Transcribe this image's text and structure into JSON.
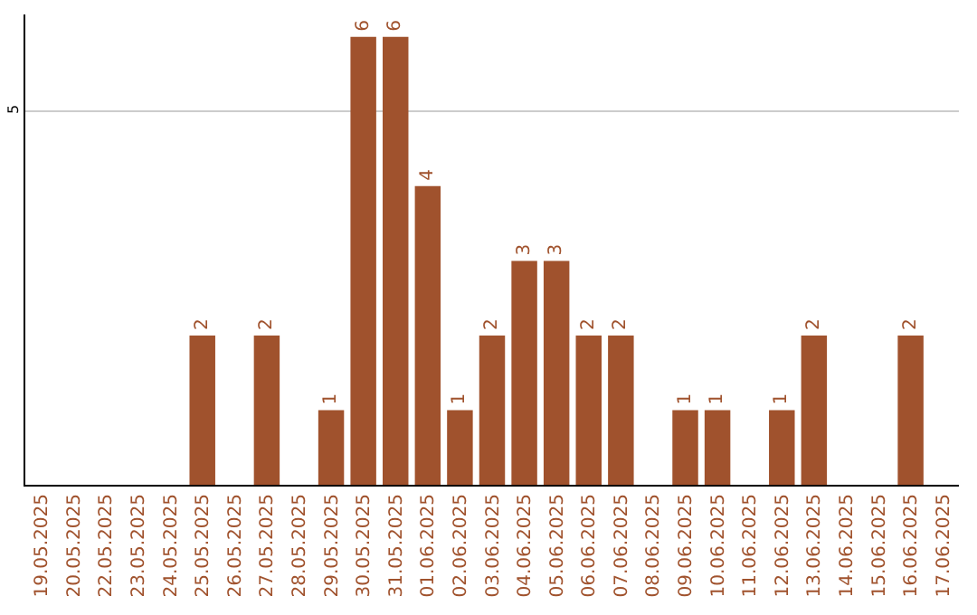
{
  "chart_data": {
    "type": "bar",
    "categories": [
      "19.05.2025",
      "20.05.2025",
      "22.05.2025",
      "23.05.2025",
      "24.05.2025",
      "25.05.2025",
      "26.05.2025",
      "27.05.2025",
      "28.05.2025",
      "29.05.2025",
      "30.05.2025",
      "31.05.2025",
      "01.06.2025",
      "02.06.2025",
      "03.06.2025",
      "04.06.2025",
      "05.06.2025",
      "06.06.2025",
      "07.06.2025",
      "08.06.2025",
      "09.06.2025",
      "10.06.2025",
      "11.06.2025",
      "12.06.2025",
      "13.06.2025",
      "14.06.2025",
      "15.06.2025",
      "16.06.2025",
      "17.06.2025"
    ],
    "values": [
      null,
      null,
      null,
      null,
      null,
      2,
      null,
      2,
      null,
      1,
      6,
      6,
      4,
      1,
      2,
      3,
      3,
      2,
      2,
      null,
      1,
      1,
      null,
      1,
      2,
      null,
      null,
      2,
      null
    ],
    "color": "#a0522d",
    "ylim": [
      0,
      6.3
    ],
    "yticks": [
      5
    ],
    "grid": "y",
    "data_labels": true,
    "legend": false
  }
}
